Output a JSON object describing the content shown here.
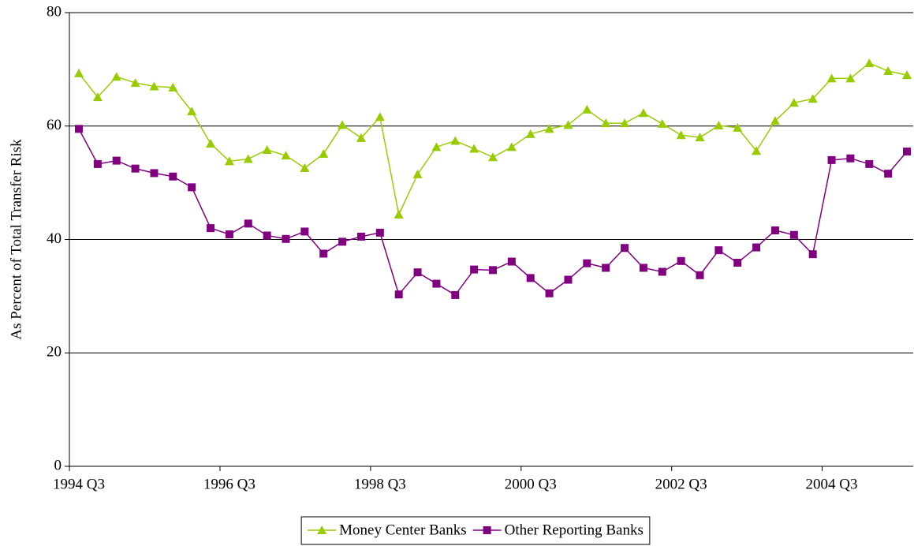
{
  "chart_data": {
    "type": "line",
    "y_label": "As Percent of Total Transfer Risk",
    "categories": [
      "1994 Q3",
      null,
      null,
      null,
      null,
      null,
      null,
      null,
      "1996 Q3",
      null,
      null,
      null,
      null,
      null,
      null,
      null,
      "1998 Q3",
      null,
      null,
      null,
      null,
      null,
      null,
      null,
      "2000 Q3",
      null,
      null,
      null,
      null,
      null,
      null,
      null,
      "2002 Q3",
      null,
      null,
      null,
      null,
      null,
      null,
      null,
      "2004 Q3",
      null,
      null,
      null,
      null
    ],
    "series": [
      {
        "name": "Money Center Banks",
        "color": "#99cc00",
        "marker": "triangle",
        "values": [
          69.3,
          65.1,
          68.7,
          67.6,
          67.0,
          66.8,
          62.6,
          56.9,
          53.8,
          54.2,
          55.8,
          54.8,
          52.6,
          55.1,
          60.2,
          57.9,
          61.6,
          44.4,
          51.5,
          56.3,
          57.4,
          56.0,
          54.5,
          56.3,
          58.6,
          59.5,
          60.2,
          62.9,
          60.5,
          60.5,
          62.3,
          60.4,
          58.4,
          58.0,
          60.1,
          59.7,
          55.6,
          60.9,
          64.1,
          64.8,
          68.4,
          68.4,
          71.1,
          69.7,
          69.0
        ]
      },
      {
        "name": "Other Reporting Banks",
        "color": "#800080",
        "marker": "square",
        "values": [
          59.5,
          53.3,
          53.9,
          52.5,
          51.7,
          51.1,
          49.2,
          42.0,
          40.9,
          42.8,
          40.7,
          40.1,
          41.4,
          37.5,
          39.6,
          40.5,
          41.2,
          30.3,
          34.2,
          32.2,
          30.2,
          34.7,
          34.6,
          36.1,
          33.2,
          30.5,
          32.9,
          35.8,
          35.0,
          38.5,
          35.0,
          34.3,
          36.2,
          33.7,
          38.1,
          35.9,
          38.6,
          41.6,
          40.8,
          37.4,
          54.0,
          54.3,
          53.3,
          51.6,
          55.5
        ]
      }
    ],
    "ylim": [
      0,
      80
    ],
    "yticks": [
      0,
      20,
      40,
      60,
      80
    ],
    "grid": true,
    "legend": "bottom"
  }
}
